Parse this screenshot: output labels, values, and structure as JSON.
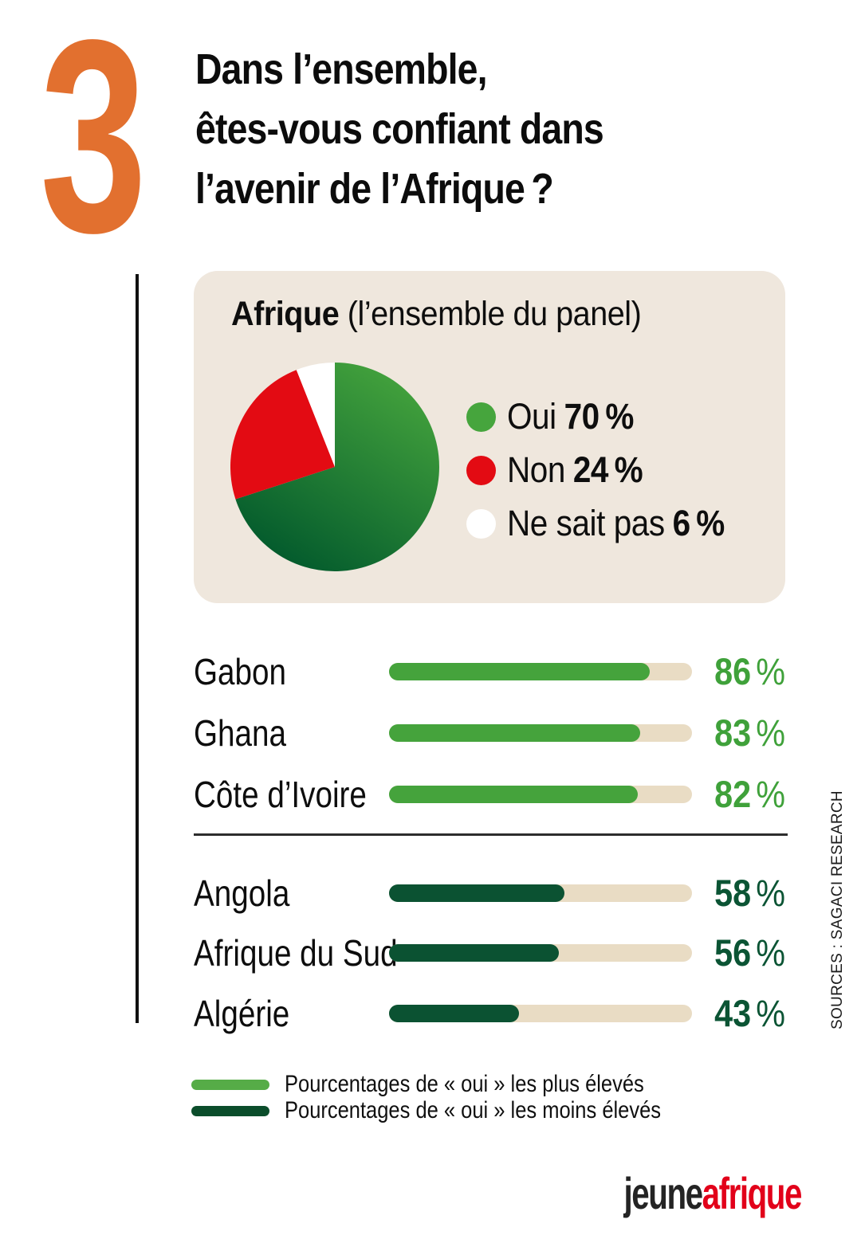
{
  "header": {
    "number": "3",
    "title_lines": [
      "Dans l’ensemble,",
      "êtes-vous confiant dans",
      "l’avenir de l’Afrique ?"
    ]
  },
  "panel": {
    "title_bold": "Afrique",
    "title_rest": " (l’ensemble du panel)",
    "legend": [
      {
        "label": "Oui",
        "value": "70 %",
        "color": "#46A53D"
      },
      {
        "label": "Non",
        "value": "24 %",
        "color": "#E30B13"
      },
      {
        "label": "Ne sait pas",
        "value": "6 %",
        "color": "#FFFFFF"
      }
    ]
  },
  "bars": {
    "percent_sign": "%",
    "high": [
      {
        "label": "Gabon",
        "value": 86,
        "display": "86"
      },
      {
        "label": "Ghana",
        "value": 83,
        "display": "83"
      },
      {
        "label": "Côte d’Ivoire",
        "value": 82,
        "display": "82"
      }
    ],
    "low": [
      {
        "label": "Angola",
        "value": 58,
        "display": "58"
      },
      {
        "label": "Afrique du Sud",
        "value": 56,
        "display": "56"
      },
      {
        "label": "Algérie",
        "value": 43,
        "display": "43"
      }
    ]
  },
  "footer_legend": [
    {
      "label": "Pourcentages de « oui » les plus élevés",
      "color": "#56AC47"
    },
    {
      "label": "Pourcentages de « oui » les moins élevés",
      "color": "#0B4D2B"
    }
  ],
  "source": "SOURCES : SAGACI RESEARCH",
  "logo": {
    "jeune": "jeune",
    "afrique": "afrique"
  },
  "colors": {
    "orange": "#E2702F",
    "panel_bg": "#EFE7DD",
    "pie_oui_light": "#46A53D",
    "pie_oui_dark": "#00572C",
    "pie_non": "#E30B13",
    "pie_nsp": "#FFFFFF",
    "bar_high": "#45A33C",
    "bar_low": "#0B5232",
    "bar_track": "#E9DCC4",
    "value_high": "#3FA13A",
    "value_low": "#0B5434",
    "legend_high": "#56AC47",
    "legend_low": "#0B4D2B",
    "logo_red": "#E2001A"
  },
  "chart_data": [
    {
      "type": "pie",
      "title": "Afrique (l’ensemble du panel)",
      "labels": [
        "Oui",
        "Non",
        "Ne sait pas"
      ],
      "values": [
        70,
        24,
        6
      ],
      "slice_fills": [
        "url(#pieGreen)",
        "#E30B13",
        "#FFFFFF"
      ],
      "start_angle_deg": 0,
      "direction": "clockwise",
      "legend_position": "right"
    },
    {
      "type": "bar",
      "orientation": "horizontal",
      "unit": "%",
      "xlim": [
        0,
        100
      ],
      "groups": [
        {
          "name": "Pourcentages de « oui » les plus élevés",
          "color": "#45A33C",
          "categories": [
            "Gabon",
            "Ghana",
            "Côte d’Ivoire"
          ],
          "values": [
            86,
            83,
            82
          ]
        },
        {
          "name": "Pourcentages de « oui » les moins élevés",
          "color": "#0B5232",
          "categories": [
            "Angola",
            "Afrique du Sud",
            "Algérie"
          ],
          "values": [
            58,
            56,
            43
          ]
        }
      ]
    }
  ]
}
